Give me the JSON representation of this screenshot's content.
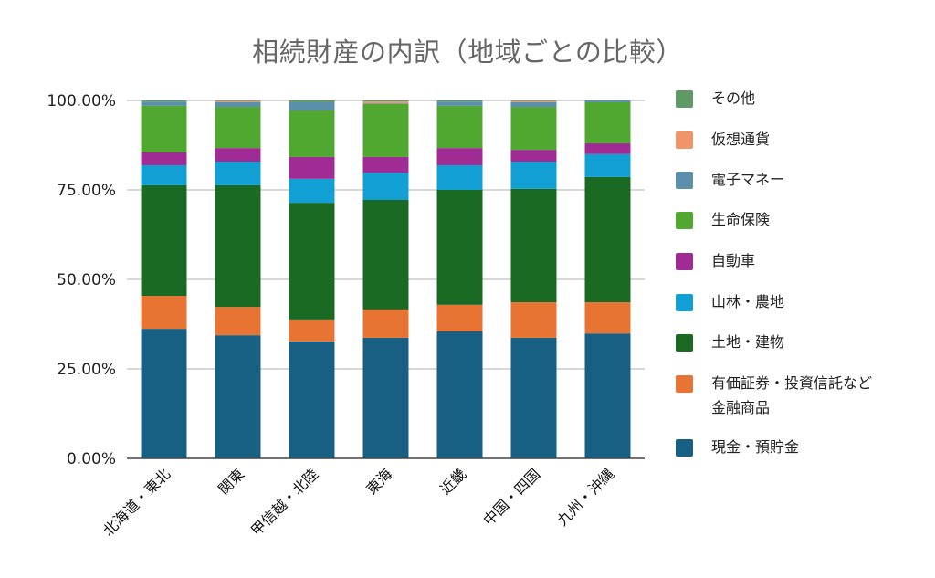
{
  "chart_data": {
    "type": "bar",
    "stacked": true,
    "title": "相続財産の内訳（地域ごとの比較）",
    "xlabel": "",
    "ylabel": "",
    "ylim": [
      0,
      100
    ],
    "yticks": [
      "0.00%",
      "25.00%",
      "50.00%",
      "75.00%",
      "100.00%"
    ],
    "ytick_values": [
      0,
      25,
      50,
      75,
      100
    ],
    "grid": true,
    "legend_position": "right",
    "categories": [
      "北海道・東北",
      "関東",
      "甲信越・北陸",
      "東海",
      "近畿",
      "中国・四国",
      "九州・沖縄"
    ],
    "series": [
      {
        "name": "現金・預貯金",
        "color": "#176083",
        "values": [
          36.2,
          34.4,
          32.7,
          33.7,
          35.5,
          33.7,
          34.9
        ]
      },
      {
        "name": "有価証券・投資信託など金融商品",
        "color": "#e87434",
        "values": [
          9.2,
          7.9,
          6.1,
          7.9,
          7.4,
          9.9,
          8.7
        ]
      },
      {
        "name": "土地・建物",
        "color": "#1b6a24",
        "values": [
          30.9,
          34.0,
          32.6,
          30.6,
          32.1,
          31.7,
          35.0
        ]
      },
      {
        "name": "山林・農地",
        "color": "#119fd4",
        "values": [
          5.6,
          6.6,
          6.7,
          7.6,
          6.9,
          7.6,
          6.4
        ]
      },
      {
        "name": "自動車",
        "color": "#a12b94",
        "values": [
          3.6,
          3.8,
          6.1,
          4.4,
          4.8,
          3.3,
          3.0
        ]
      },
      {
        "name": "生命保険",
        "color": "#50a831",
        "values": [
          13.0,
          11.5,
          13.0,
          14.8,
          11.8,
          12.0,
          11.5
        ]
      },
      {
        "name": "電子マネー",
        "color": "#5b8fab",
        "values": [
          1.2,
          1.3,
          2.3,
          0.2,
          1.2,
          1.3,
          0.5
        ]
      },
      {
        "name": "仮想通貨",
        "color": "#f0956a",
        "values": [
          0.0,
          0.3,
          0.0,
          0.5,
          0.0,
          0.3,
          0.0
        ]
      },
      {
        "name": "その他",
        "color": "#5e9966",
        "values": [
          0.3,
          0.2,
          0.5,
          0.3,
          0.3,
          0.2,
          0.0
        ]
      }
    ]
  },
  "legend": {
    "items": [
      {
        "label": "その他",
        "color": "#5e9966"
      },
      {
        "label": "仮想通貨",
        "color": "#f0956a"
      },
      {
        "label": "電子マネー",
        "color": "#5b8fab"
      },
      {
        "label": "生命保険",
        "color": "#50a831"
      },
      {
        "label": "自動車",
        "color": "#a12b94"
      },
      {
        "label": "山林・農地",
        "color": "#119fd4"
      },
      {
        "label": "土地・建物",
        "color": "#1b6a24"
      },
      {
        "label": "有価証券・投資信託など\n金融商品",
        "color": "#e87434"
      },
      {
        "label": "現金・預貯金",
        "color": "#176083"
      }
    ]
  }
}
